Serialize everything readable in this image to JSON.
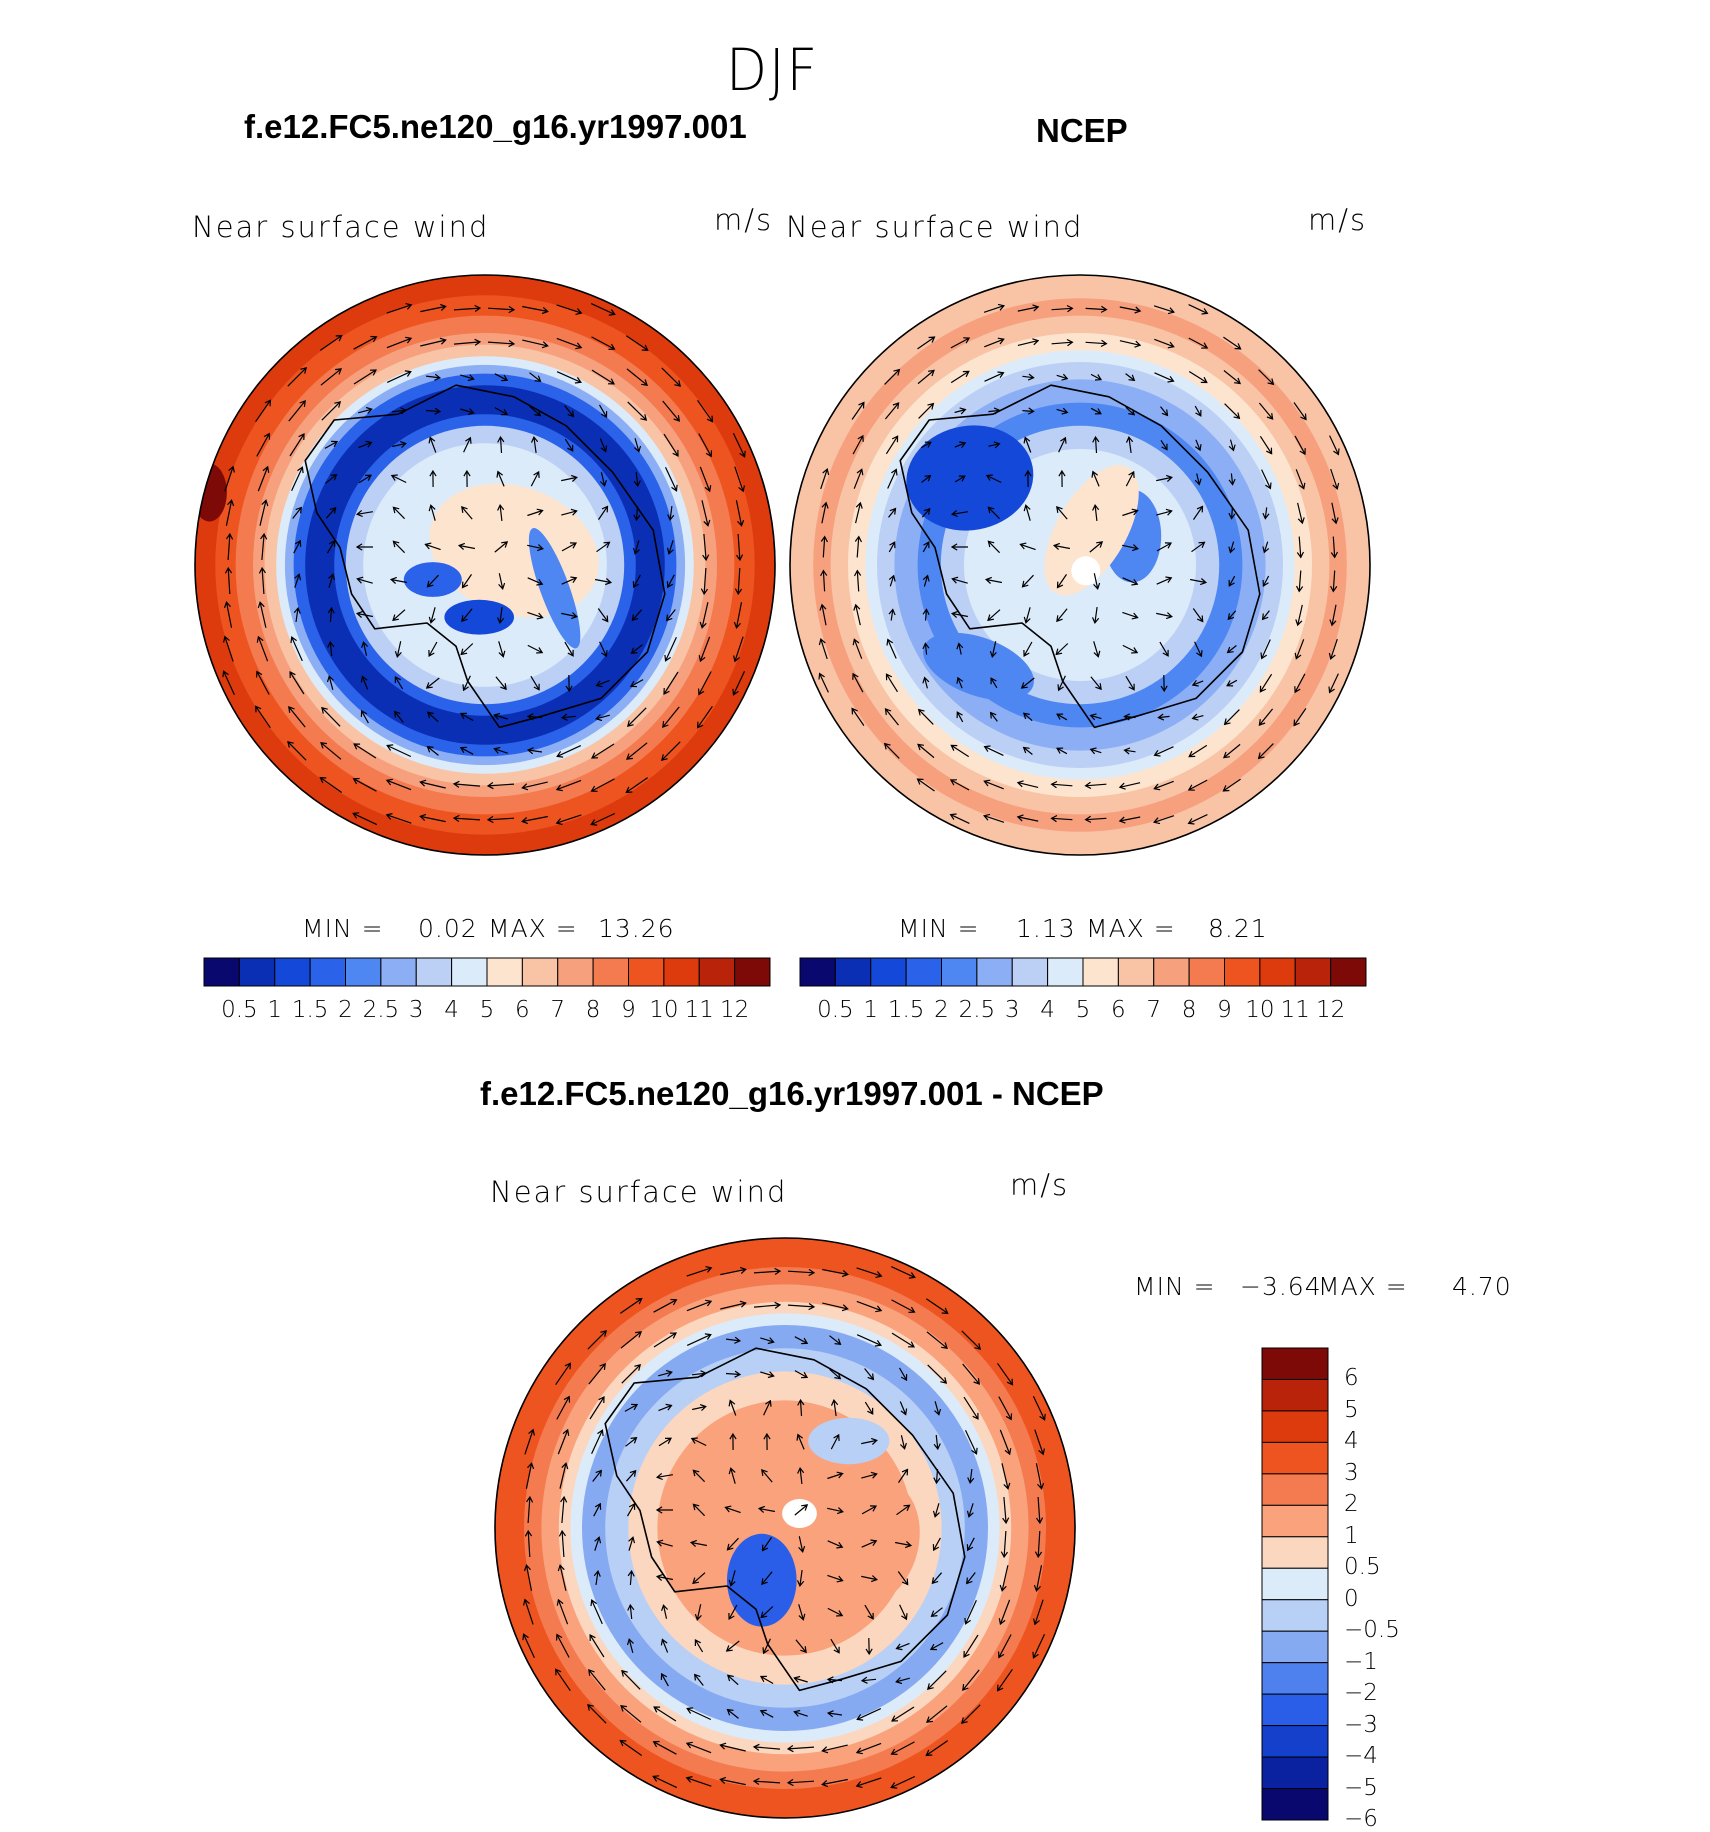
{
  "figure_title": "DJF",
  "chart_data": [
    {
      "type": "heatmap",
      "title": "f.e12.FC5.ne120_g16.yr1997.001",
      "left_label": "Near surface wind",
      "units": "m/s",
      "min_label": "MIN =",
      "min_value": "0.02",
      "max_label": "MAX =",
      "max_value": "13.26",
      "colorbar_ticks": [
        "0.5",
        "1",
        "1.5",
        "2",
        "2.5",
        "3",
        "4",
        "5",
        "6",
        "7",
        "8",
        "9",
        "10",
        "11",
        "12"
      ],
      "regions": [
        {
          "polar_ring": "outer",
          "value_range": "9-11"
        },
        {
          "polar_ring": "mid",
          "value_range": "0.5-2"
        },
        {
          "polar_ring": "inner",
          "value_range": "3-6"
        }
      ]
    },
    {
      "type": "heatmap",
      "title": "NCEP",
      "left_label": "Near surface wind",
      "units": "m/s",
      "min_label": "MIN =",
      "min_value": "1.13",
      "max_label": "MAX =",
      "max_value": "8.21",
      "colorbar_ticks": [
        "0.5",
        "1",
        "1.5",
        "2",
        "2.5",
        "3",
        "4",
        "5",
        "6",
        "7",
        "8",
        "9",
        "10",
        "11",
        "12"
      ],
      "regions": [
        {
          "polar_ring": "outer",
          "value_range": "6-8"
        },
        {
          "polar_ring": "mid",
          "value_range": "2-4"
        },
        {
          "polar_ring": "inner",
          "value_range": "2.5-5"
        }
      ]
    },
    {
      "type": "heatmap",
      "title": "f.e12.FC5.ne120_g16.yr1997.001 - NCEP",
      "left_label": "Near surface wind",
      "units": "m/s",
      "min_label": "MIN =",
      "min_value": "−3.64",
      "max_label": "MAX =",
      "max_value": "4.70",
      "colorbar_ticks": [
        "6",
        "5",
        "4",
        "3",
        "2",
        "1",
        "0.5",
        "0",
        "−0.5",
        "−1",
        "−2",
        "−3",
        "−4",
        "−5",
        "−6"
      ],
      "regions": [
        {
          "polar_ring": "outer",
          "value_range": "2-4"
        },
        {
          "polar_ring": "mid",
          "value_range": "-2 to -0.5"
        },
        {
          "polar_ring": "inner",
          "value_range": "0.5-2"
        }
      ]
    }
  ],
  "colors": {
    "seq_palette": [
      "#08086e",
      "#0a2fb5",
      "#1448d8",
      "#2a62ea",
      "#4e86f2",
      "#8caef4",
      "#bcd0f6",
      "#dcebfa",
      "#fde4cf",
      "#f9c4a6",
      "#f6a07e",
      "#f47a50",
      "#ee5420",
      "#dd3b0e",
      "#b8230a",
      "#7d0a06"
    ],
    "div_palette": [
      "#7d0a06",
      "#b8230a",
      "#dd3b0e",
      "#ee5420",
      "#f47a50",
      "#f9a27c",
      "#fcd7bf",
      "#dcebfa",
      "#b8cff6",
      "#86aaf2",
      "#4e80ee",
      "#2a5ee8",
      "#1440cc",
      "#0a22a0",
      "#08086e"
    ]
  }
}
